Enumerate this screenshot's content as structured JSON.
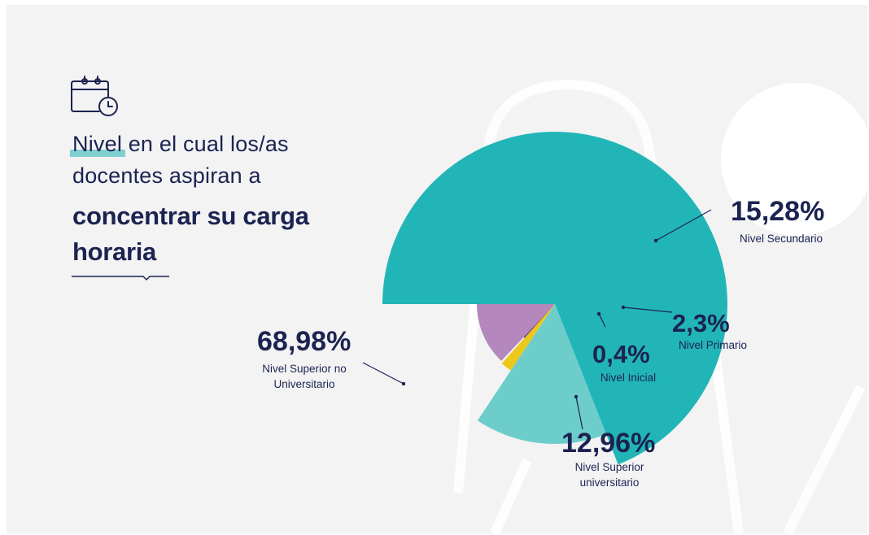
{
  "title": {
    "line1_highlight": "Nivel",
    "line1_rest": " en el cual los/as",
    "line2": "docentes aspiran a",
    "line3": "concentrar su carga",
    "line4": "horaria"
  },
  "icons": {
    "title_icon": "calendar-clock-icon"
  },
  "chart_data": {
    "type": "pie",
    "variant": "variable-radius",
    "slices": [
      {
        "label": "Nivel Superior no Universitario",
        "label_lines": [
          "Nivel Superior no",
          "Universitario"
        ],
        "pct_text": "68,98%",
        "value": 68.98,
        "color": "#22b5b8"
      },
      {
        "label": "Nivel Secundario",
        "label_lines": [
          "Nivel Secundario"
        ],
        "pct_text": "15,28%",
        "value": 15.28,
        "color": "#6dcdcb"
      },
      {
        "label": "Nivel Primario",
        "label_lines": [
          "Nivel Primario"
        ],
        "pct_text": "2,3%",
        "value": 2.3,
        "color": "#ecc81c"
      },
      {
        "label": "Nivel Inicial",
        "label_lines": [
          "Nivel Inicial"
        ],
        "pct_text": "0,4%",
        "value": 0.4,
        "color": "#6b2f7d"
      },
      {
        "label": "Nivel Superior universitario",
        "label_lines": [
          "Nivel Superior",
          "universitario"
        ],
        "pct_text": "12,96%",
        "value": 12.96,
        "color": "#b487bd"
      }
    ]
  }
}
